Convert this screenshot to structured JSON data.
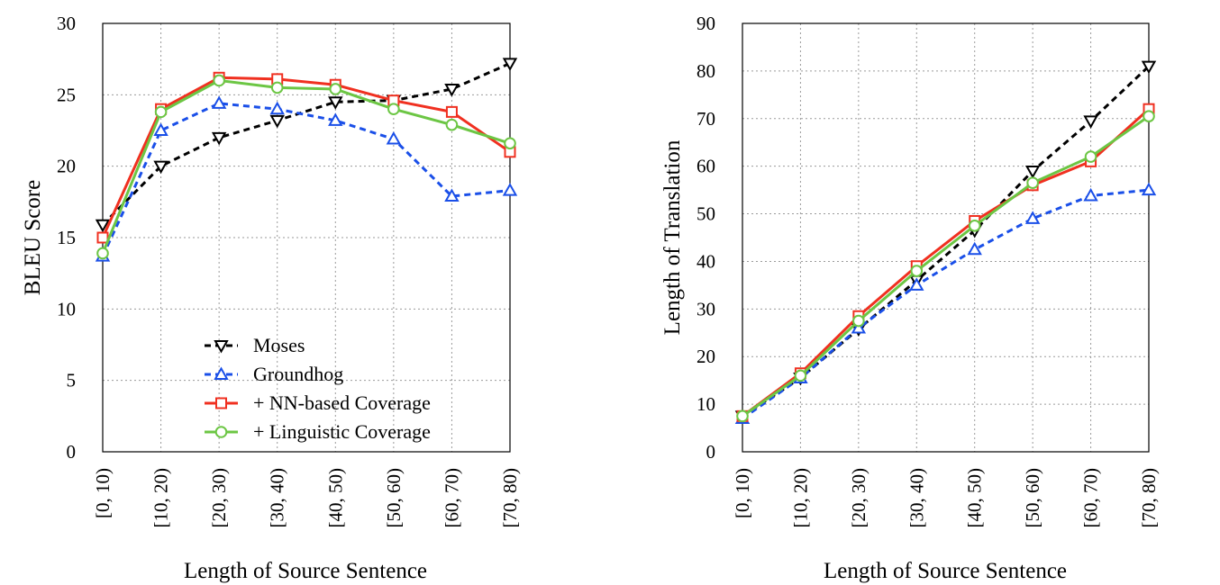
{
  "chart_data": [
    {
      "type": "line",
      "xlabel": "Length of Source Sentence",
      "ylabel": "BLEU Score",
      "categories": [
        "[0, 10)",
        "[10, 20)",
        "[20, 30)",
        "[30, 40)",
        "[40, 50)",
        "[50, 60)",
        "[60, 70)",
        "[70, 80)"
      ],
      "ylim": [
        0,
        30
      ],
      "yticks": [
        "0",
        "5",
        "10",
        "15",
        "20",
        "25",
        "30"
      ],
      "grid": true,
      "legend": "bottom-center",
      "series": [
        {
          "name": "Moses",
          "color": "#000000",
          "marker": "triangle-down",
          "dashed": true,
          "values": [
            15.9,
            20.0,
            22.0,
            23.2,
            24.5,
            24.6,
            25.4,
            27.2
          ]
        },
        {
          "name": "Groundhog",
          "color": "#1a4fe8",
          "marker": "triangle-up",
          "dashed": true,
          "values": [
            13.7,
            22.5,
            24.4,
            24.0,
            23.2,
            21.9,
            17.9,
            18.3
          ]
        },
        {
          "name": "+ NN-based Coverage",
          "color": "#f03020",
          "marker": "square",
          "dashed": false,
          "values": [
            15.0,
            24.0,
            26.2,
            26.1,
            25.7,
            24.6,
            23.8,
            21.0
          ]
        },
        {
          "name": "+ Linguistic Coverage",
          "color": "#6cc644",
          "marker": "circle",
          "dashed": false,
          "values": [
            13.9,
            23.8,
            26.0,
            25.5,
            25.4,
            24.0,
            22.9,
            21.6
          ]
        }
      ]
    },
    {
      "type": "line",
      "xlabel": "Length of Source Sentence",
      "ylabel": "Length of Translation",
      "categories": [
        "[0, 10)",
        "[10, 20)",
        "[20, 30)",
        "[30, 40)",
        "[40, 50)",
        "[50, 60)",
        "[60, 70)",
        "[70, 80)"
      ],
      "ylim": [
        0,
        90
      ],
      "yticks": [
        "0",
        "10",
        "20",
        "30",
        "40",
        "50",
        "60",
        "70",
        "80",
        "90"
      ],
      "grid": true,
      "series": [
        {
          "name": "Moses",
          "color": "#000000",
          "marker": "triangle-down",
          "dashed": true,
          "values": [
            7.5,
            15.5,
            25.8,
            36.0,
            46.5,
            59.0,
            69.5,
            81.0
          ]
        },
        {
          "name": "Groundhog",
          "color": "#1a4fe8",
          "marker": "triangle-up",
          "dashed": true,
          "values": [
            7.0,
            15.5,
            26.0,
            35.0,
            42.5,
            49.0,
            53.8,
            55.0
          ]
        },
        {
          "name": "+ NN-based Coverage",
          "color": "#f03020",
          "marker": "square",
          "dashed": false,
          "values": [
            7.5,
            16.5,
            28.5,
            39.0,
            48.5,
            56.0,
            61.0,
            72.0
          ]
        },
        {
          "name": "+ Linguistic Coverage",
          "color": "#6cc644",
          "marker": "circle",
          "dashed": false,
          "values": [
            7.5,
            16.0,
            27.5,
            38.0,
            47.5,
            56.5,
            62.0,
            70.5
          ]
        }
      ]
    }
  ]
}
